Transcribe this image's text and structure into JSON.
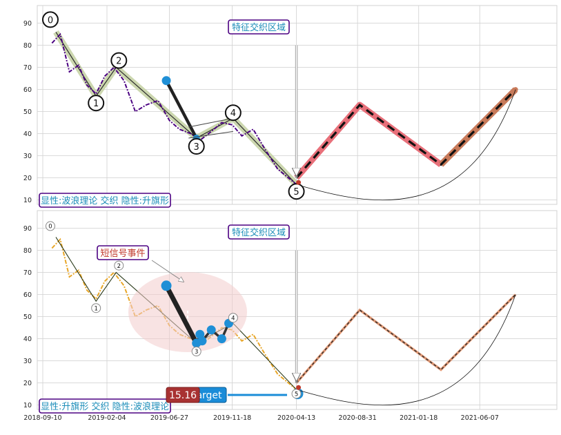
{
  "chart_data": [
    {
      "type": "line",
      "panel": "top",
      "ylim": [
        8,
        98
      ],
      "yticks": [
        10,
        20,
        30,
        40,
        50,
        60,
        70,
        80,
        90
      ],
      "xticks": [
        "2018-09-10",
        "2019-02-04",
        "2019-06-27",
        "2019-11-18",
        "2020-04-13",
        "2020-08-31",
        "2021-01-18",
        "2021-06-07"
      ],
      "grid": true,
      "price_series": {
        "name": "",
        "color": "#4b0082",
        "x": [
          "2018-10-01",
          "2018-10-20",
          "2018-11-10",
          "2018-12-01",
          "2018-12-20",
          "2019-01-10",
          "2019-01-30",
          "2019-02-20",
          "2019-03-15",
          "2019-04-10",
          "2019-05-05",
          "2019-06-01",
          "2019-06-27",
          "2019-07-20",
          "2019-08-15",
          "2019-09-05",
          "2019-10-01",
          "2019-10-25",
          "2019-11-18",
          "2019-12-10",
          "2020-01-05",
          "2020-02-01",
          "2020-03-01",
          "2020-04-13"
        ],
        "y": [
          81,
          85,
          68,
          71,
          62,
          58,
          66,
          70,
          64,
          50,
          53,
          55,
          46,
          42,
          40,
          37,
          41,
          45,
          44,
          39,
          42,
          33,
          24,
          17
        ]
      },
      "wave_points": [
        {
          "label": "0",
          "x": "2018-10-10",
          "y": 86
        },
        {
          "label": "1",
          "x": "2019-01-10",
          "y": 57
        },
        {
          "label": "2",
          "x": "2019-02-25",
          "y": 70
        },
        {
          "label": "3",
          "x": "2019-08-28",
          "y": 38
        },
        {
          "label": "4",
          "x": "2019-11-20",
          "y": 47
        },
        {
          "label": "5",
          "x": "2020-04-13",
          "y": 17
        }
      ],
      "flag_pole": [
        {
          "x": "2019-06-20",
          "y": 64
        },
        {
          "x": "2019-08-28",
          "y": 38
        }
      ],
      "projection": {
        "x": [
          "2020-04-13",
          "2020-09-05",
          "2021-03-10",
          "2021-08-28"
        ],
        "y": [
          20,
          53,
          26,
          60
        ]
      },
      "annotations": {
        "region_label": "特征交织区域",
        "pattern_label": "显性:波浪理论 交织 隐性:升旗形"
      }
    },
    {
      "type": "line",
      "panel": "bottom",
      "ylim": [
        8,
        98
      ],
      "yticks": [
        10,
        20,
        30,
        40,
        50,
        60,
        70,
        80,
        90
      ],
      "xticks": [
        "2018-09-10",
        "2019-02-04",
        "2019-06-27",
        "2019-11-18",
        "2020-04-13",
        "2020-08-31",
        "2021-01-18",
        "2021-06-07"
      ],
      "grid": true,
      "price_series": {
        "name": "",
        "color": "#e8a628",
        "x": [
          "2018-10-01",
          "2018-10-20",
          "2018-11-10",
          "2018-12-01",
          "2018-12-20",
          "2019-01-10",
          "2019-01-30",
          "2019-02-20",
          "2019-03-15",
          "2019-04-10",
          "2019-05-05",
          "2019-06-01",
          "2019-06-27",
          "2019-07-20",
          "2019-08-15",
          "2019-09-05",
          "2019-10-01",
          "2019-10-25",
          "2019-11-18",
          "2019-12-10",
          "2020-01-05",
          "2020-02-01",
          "2020-03-01",
          "2020-04-13"
        ],
        "y": [
          81,
          85,
          68,
          71,
          62,
          58,
          66,
          70,
          64,
          50,
          53,
          55,
          46,
          42,
          40,
          37,
          41,
          45,
          44,
          39,
          42,
          33,
          24,
          17
        ]
      },
      "wave_points": [
        {
          "label": "0",
          "x": "2018-10-10",
          "y": 86
        },
        {
          "label": "1",
          "x": "2019-01-10",
          "y": 57
        },
        {
          "label": "2",
          "x": "2019-02-25",
          "y": 70
        },
        {
          "label": "3",
          "x": "2019-08-28",
          "y": 38
        },
        {
          "label": "4",
          "x": "2019-11-20",
          "y": 47
        },
        {
          "label": "5",
          "x": "2020-04-13",
          "y": 17
        }
      ],
      "flag_points": [
        {
          "x": "2019-06-20",
          "y": 64
        },
        {
          "x": "2019-08-28",
          "y": 38
        },
        {
          "x": "2019-09-05",
          "y": 42
        },
        {
          "x": "2019-09-10",
          "y": 39
        },
        {
          "x": "2019-10-01",
          "y": 44
        },
        {
          "x": "2019-10-25",
          "y": 40
        },
        {
          "x": "2019-11-10",
          "y": 47
        }
      ],
      "projection": {
        "x": [
          "2020-04-13",
          "2020-09-05",
          "2021-03-10",
          "2021-08-28"
        ],
        "y": [
          20,
          53,
          26,
          60
        ]
      },
      "target_point": {
        "x": "2020-04-16",
        "y": 15.16
      },
      "annotations": {
        "region_label": "特征交织区域",
        "event_label": "短信号事件",
        "pattern_label": "显性:升旗形 交织 隐性:波浪理论",
        "target_value": "15.16",
        "target_text": "arget"
      }
    }
  ]
}
